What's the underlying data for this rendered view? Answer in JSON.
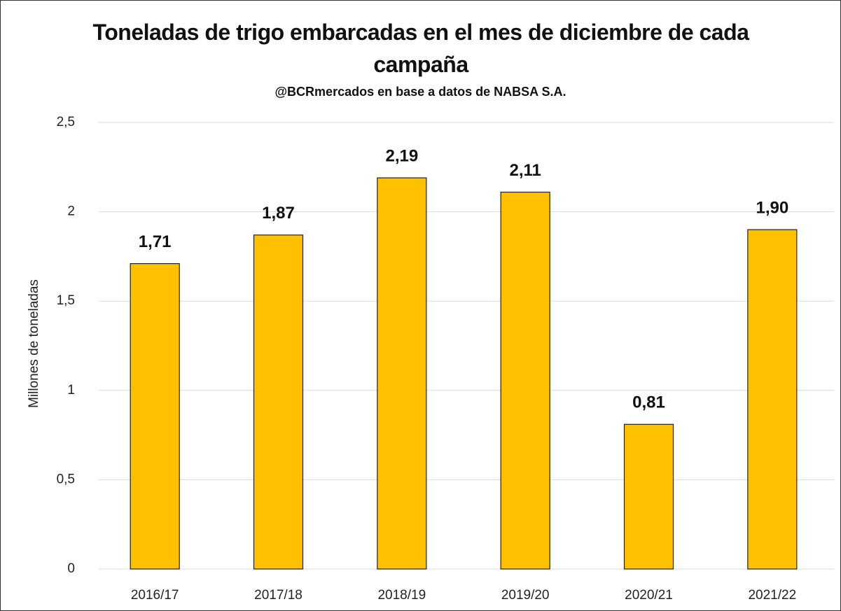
{
  "chart_data": {
    "type": "bar",
    "title": "Toneladas de trigo embarcadas en el mes de diciembre de cada campaña",
    "subtitle": "@BCRmercados en base a datos de NABSA S.A.",
    "y_label": "Millones de toneladas",
    "categories": [
      "2016/17",
      "2017/18",
      "2018/19",
      "2019/20",
      "2020/21",
      "2021/22"
    ],
    "values": [
      1.71,
      1.87,
      2.19,
      2.11,
      0.81,
      1.9
    ],
    "value_labels": [
      "1,71",
      "1,87",
      "2,19",
      "2,11",
      "0,81",
      "1,90"
    ],
    "color": "#ffc000",
    "ylim": [
      0,
      2.5
    ],
    "yticks": [
      0,
      {
        "value": 0.5,
        "label": "0,5"
      },
      1,
      {
        "value": 1.5,
        "label": "1,5"
      },
      2,
      {
        "value": 2.5,
        "label": "2,5"
      }
    ],
    "grid": true
  }
}
